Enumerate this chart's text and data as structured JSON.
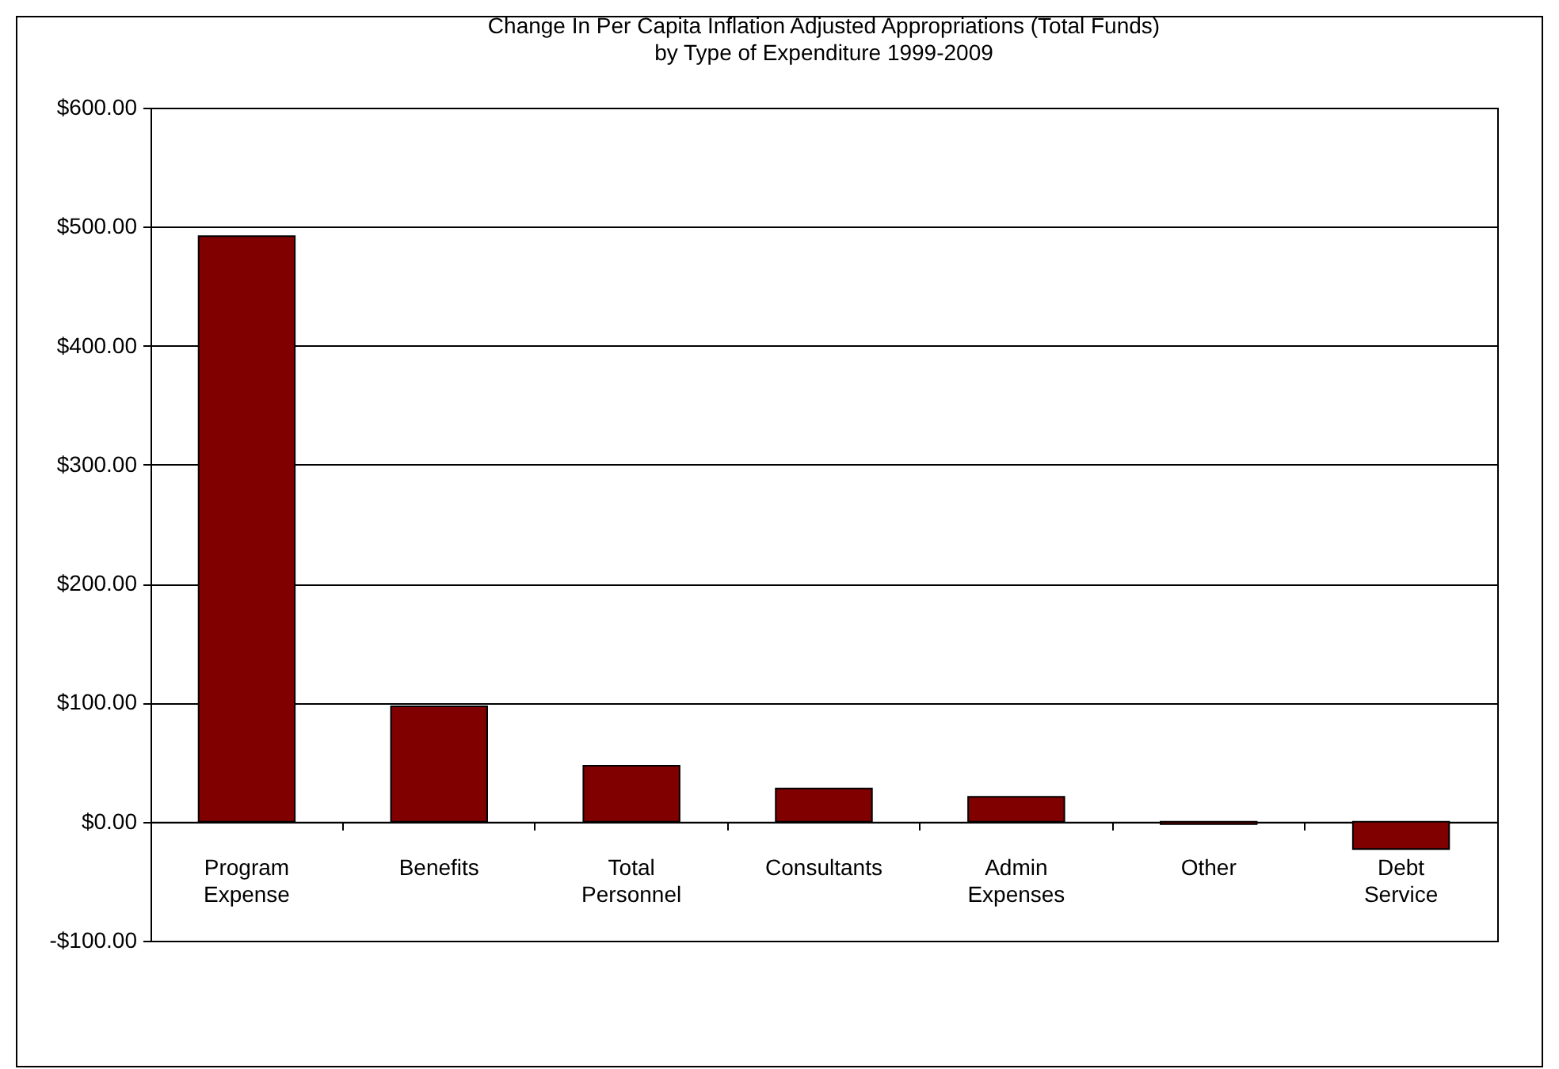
{
  "chart_data": {
    "type": "bar",
    "title": "Change In Per Capita Inflation Adjusted Appropriations (Total Funds)",
    "subtitle": "by Type of Expenditure 1999-2009",
    "categories": [
      "Program Expense",
      "Benefits",
      "Total Personnel",
      "Consultants",
      "Admin Expenses",
      "Other",
      "Debt Service"
    ],
    "values": [
      492,
      97,
      47,
      28,
      21,
      -2,
      -23
    ],
    "color": "#800000",
    "ylim": [
      -100,
      600
    ],
    "yticks": [
      {
        "value": -100,
        "label": "-$100.00"
      },
      {
        "value": 0,
        "label": "$0.00"
      },
      {
        "value": 100,
        "label": "$100.00"
      },
      {
        "value": 200,
        "label": "$200.00"
      },
      {
        "value": 300,
        "label": "$300.00"
      },
      {
        "value": 400,
        "label": "$400.00"
      },
      {
        "value": 500,
        "label": "$500.00"
      },
      {
        "value": 600,
        "label": "$600.00"
      }
    ],
    "grid": "y"
  }
}
